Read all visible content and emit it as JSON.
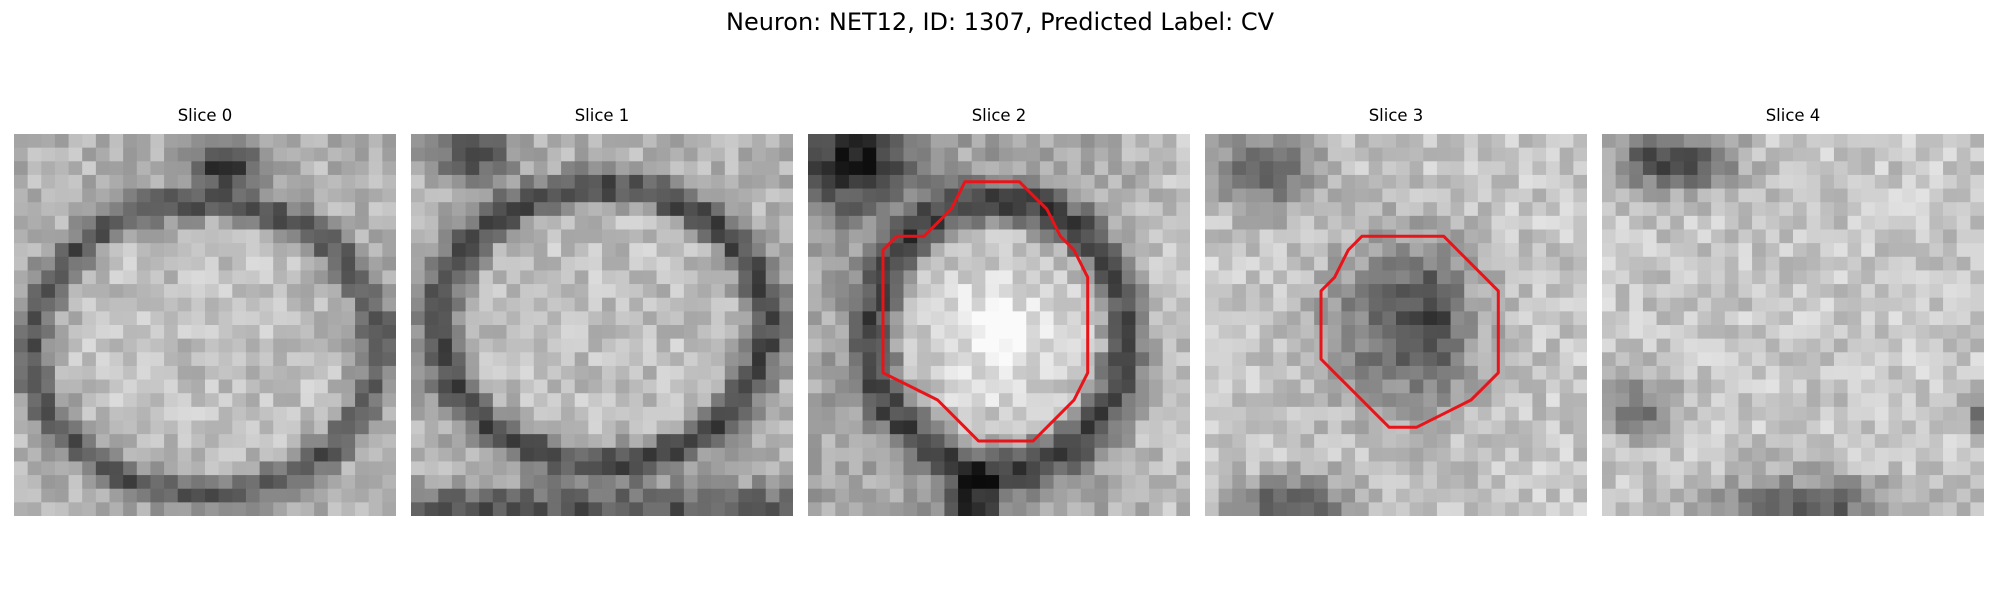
{
  "figure": {
    "title": "Neuron: NET12, ID: 1307, Predicted Label: CV"
  },
  "slices": [
    {
      "label": "Slice 0",
      "seed": 11,
      "contour": false
    },
    {
      "label": "Slice 1",
      "seed": 23,
      "contour": false
    },
    {
      "label": "Slice 2",
      "seed": 37,
      "contour": true
    },
    {
      "label": "Slice 3",
      "seed": 53,
      "contour": true
    },
    {
      "label": "Slice 4",
      "seed": 71,
      "contour": false
    }
  ],
  "colors": {
    "contour": "#e8141a",
    "background": "#ffffff"
  },
  "image_description": "grayscale microscopy slices with red segmentation contour on slices 2 and 3"
}
